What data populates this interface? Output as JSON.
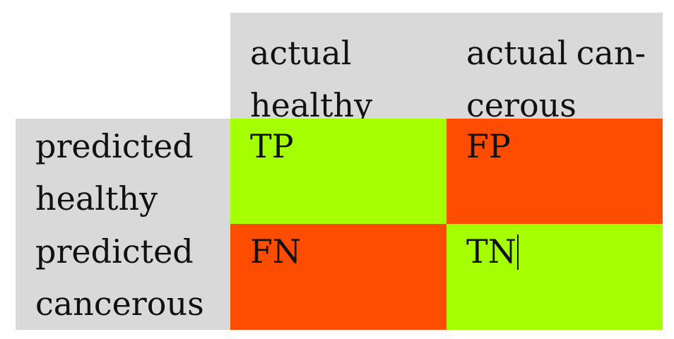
{
  "table": {
    "headers": {
      "actual_healthy": [
        "actual",
        "healthy"
      ],
      "actual_cancerous": [
        "actual",
        "can-",
        "cerous"
      ]
    },
    "rows": {
      "predicted_healthy": [
        "predicted",
        "healthy"
      ],
      "predicted_cancerous": [
        "predicted",
        "cancerous"
      ]
    },
    "cells": {
      "tp": "TP",
      "fp": "FP",
      "fn": "FN",
      "tn": "TN"
    },
    "colors": {
      "header_bg": "#d9d9d9",
      "correct_bg": "#a6ff00",
      "error_bg": "#ff4d00"
    }
  }
}
